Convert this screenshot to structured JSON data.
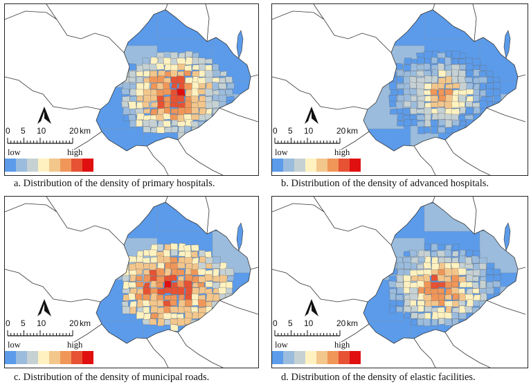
{
  "panels": [
    {
      "caption": "a. Distribution of the density of primary hospitals.",
      "theme": "primary_hospitals"
    },
    {
      "caption": "b. Distribution of the density of advanced hospitals.",
      "theme": "advanced_hospitals"
    },
    {
      "caption": "c. Distribution of the density of municipal roads.",
      "theme": "municipal_roads"
    },
    {
      "caption": "d. Distribution of the density of elastic facilities.",
      "theme": "elastic_facilities"
    }
  ],
  "scale": {
    "ticks": [
      "0",
      "5",
      "10",
      "20"
    ],
    "unit": "km"
  },
  "legend": {
    "low": "low",
    "high": "high",
    "colors": [
      "#5b9bea",
      "#9bbcdd",
      "#c6d1d3",
      "#fff2c0",
      "#f3c68c",
      "#f09658",
      "#e65233",
      "#e01010"
    ]
  }
}
